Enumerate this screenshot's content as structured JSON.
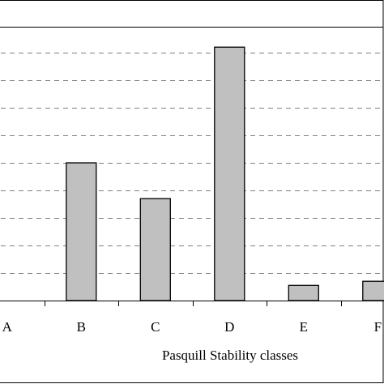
{
  "chart_data": {
    "type": "bar",
    "categories": [
      "A",
      "B",
      "C",
      "D",
      "E",
      "F"
    ],
    "values": [
      0,
      5,
      3.7,
      9.2,
      0.55,
      0.7
    ],
    "xlabel": "Pasquill Stability classes",
    "ylabel": "",
    "ylim": [
      0,
      10
    ],
    "y_gridline_step": 1,
    "grid": "horizontal dashed",
    "bar_color": "#c0c0c0",
    "bar_edge_color": "#000000",
    "grid_color": "#808080"
  }
}
